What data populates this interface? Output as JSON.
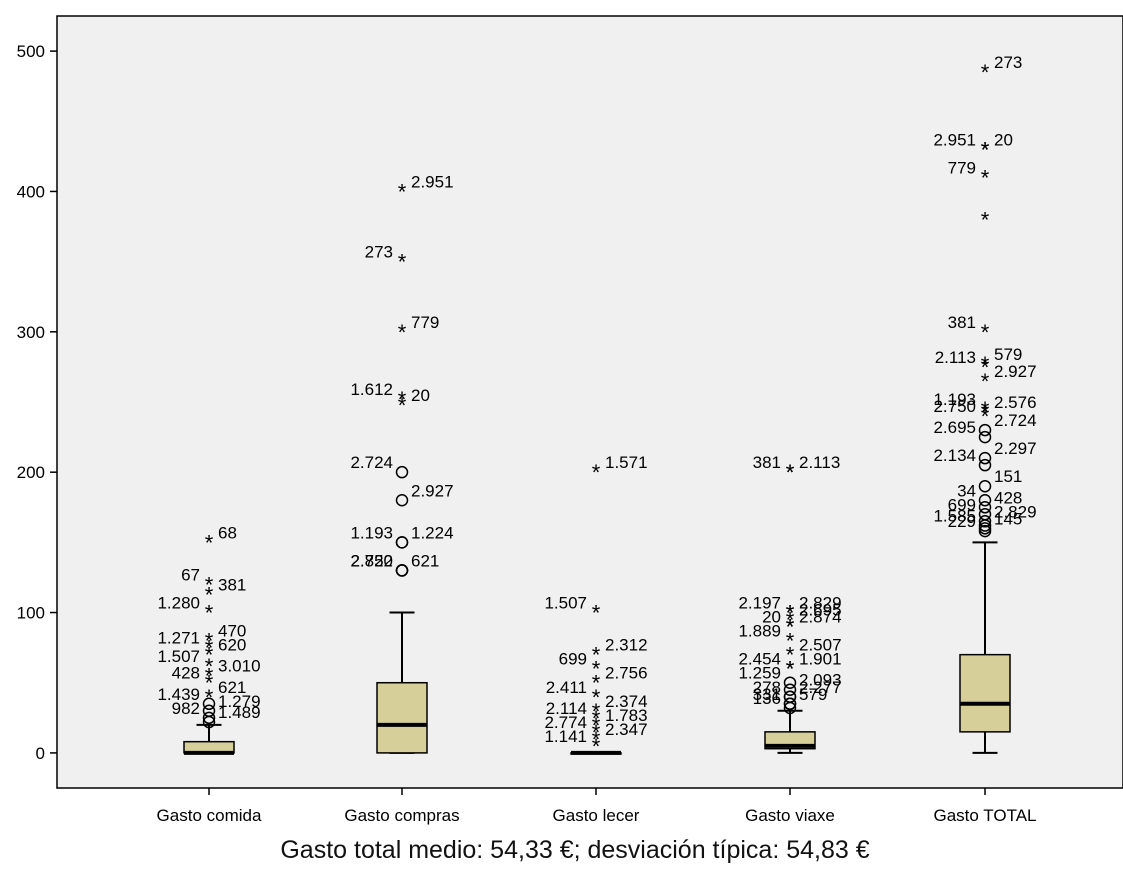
{
  "caption": "Gasto total medio: 54,33 €; desviación típica: 54,83 €",
  "colors": {
    "box_fill": "#d6cf9a",
    "plot_bg": "#f0f0f0",
    "ink": "#000000"
  },
  "chart_data": {
    "type": "boxplot",
    "title": "",
    "xlabel": "",
    "ylabel": "",
    "ylim": [
      -25,
      525
    ],
    "yticks": [
      0,
      100,
      200,
      300,
      400,
      500
    ],
    "grid": false,
    "legend": "none",
    "categories": [
      "Gasto comida",
      "Gasto compras",
      "Gasto lecer",
      "Gasto viaxe",
      "Gasto TOTAL"
    ],
    "series": [
      {
        "category": "Gasto comida",
        "box": {
          "whisker_low": 0,
          "q1": 0,
          "median": 0,
          "q3": 8,
          "whisker_high": 20
        },
        "outliers": [
          {
            "label": "68",
            "value": 150,
            "marker": "star"
          },
          {
            "label": "67",
            "value": 120,
            "marker": "star"
          },
          {
            "label": "381",
            "value": 113,
            "marker": "star"
          },
          {
            "label": "1.280",
            "value": 100,
            "marker": "star"
          },
          {
            "label": "470",
            "value": 80,
            "marker": "star"
          },
          {
            "label": "1.271",
            "value": 75,
            "marker": "star"
          },
          {
            "label": "620",
            "value": 70,
            "marker": "star"
          },
          {
            "label": "1.507",
            "value": 62,
            "marker": "star"
          },
          {
            "label": "3.010",
            "value": 55,
            "marker": "star"
          },
          {
            "label": "428",
            "value": 50,
            "marker": "star"
          },
          {
            "label": "621",
            "value": 40,
            "marker": "star"
          },
          {
            "label": "1.439",
            "value": 35,
            "marker": "circle"
          },
          {
            "label": "1.279",
            "value": 30,
            "marker": "circle"
          },
          {
            "label": "982",
            "value": 25,
            "marker": "circle"
          },
          {
            "label": "1.489",
            "value": 22,
            "marker": "circle"
          }
        ]
      },
      {
        "category": "Gasto compras",
        "box": {
          "whisker_low": 0,
          "q1": 0,
          "median": 20,
          "q3": 50,
          "whisker_high": 100
        },
        "outliers": [
          {
            "label": "2.951",
            "value": 400,
            "marker": "star"
          },
          {
            "label": "273",
            "value": 350,
            "marker": "star"
          },
          {
            "label": "779",
            "value": 300,
            "marker": "star"
          },
          {
            "label": "1.612",
            "value": 252,
            "marker": "star"
          },
          {
            "label": "20",
            "value": 248,
            "marker": "star"
          },
          {
            "label": "2.724",
            "value": 200,
            "marker": "circle"
          },
          {
            "label": "2.927",
            "value": 180,
            "marker": "circle"
          },
          {
            "label": "1.193",
            "value": 150,
            "marker": "circle"
          },
          {
            "label": "1.224",
            "value": 150,
            "marker": "circle"
          },
          {
            "label": "2.750",
            "value": 130,
            "marker": "circle"
          },
          {
            "label": "621",
            "value": 130,
            "marker": "circle"
          },
          {
            "label": "2.822",
            "value": 130,
            "marker": "circle"
          }
        ]
      },
      {
        "category": "Gasto lecer",
        "box": {
          "whisker_low": 0,
          "q1": 0,
          "median": 0,
          "q3": 0,
          "whisker_high": 0
        },
        "outliers": [
          {
            "label": "1.571",
            "value": 200,
            "marker": "star"
          },
          {
            "label": "1.507",
            "value": 100,
            "marker": "star"
          },
          {
            "label": "2.312",
            "value": 70,
            "marker": "star"
          },
          {
            "label": "699",
            "value": 60,
            "marker": "star"
          },
          {
            "label": "2.756",
            "value": 50,
            "marker": "star"
          },
          {
            "label": "2.411",
            "value": 40,
            "marker": "star"
          },
          {
            "label": "2.374",
            "value": 30,
            "marker": "star"
          },
          {
            "label": "2.114",
            "value": 25,
            "marker": "star"
          },
          {
            "label": "1.783",
            "value": 20,
            "marker": "star"
          },
          {
            "label": "2.774",
            "value": 15,
            "marker": "star"
          },
          {
            "label": "2.347",
            "value": 10,
            "marker": "star"
          },
          {
            "label": "1.141",
            "value": 5,
            "marker": "star"
          }
        ]
      },
      {
        "category": "Gasto viaxe",
        "box": {
          "whisker_low": 0,
          "q1": 3,
          "median": 5,
          "q3": 15,
          "whisker_high": 30
        },
        "outliers": [
          {
            "label": "2.113",
            "value": 200,
            "marker": "star"
          },
          {
            "label": "381",
            "value": 200,
            "marker": "star"
          },
          {
            "label": "2.829",
            "value": 100,
            "marker": "star"
          },
          {
            "label": "2.197",
            "value": 100,
            "marker": "star"
          },
          {
            "label": "2.695",
            "value": 95,
            "marker": "star"
          },
          {
            "label": "20",
            "value": 90,
            "marker": "star"
          },
          {
            "label": "2.874",
            "value": 90,
            "marker": "star"
          },
          {
            "label": "1.889",
            "value": 80,
            "marker": "star"
          },
          {
            "label": "2.507",
            "value": 70,
            "marker": "star"
          },
          {
            "label": "2.454",
            "value": 60,
            "marker": "star"
          },
          {
            "label": "1.901",
            "value": 60,
            "marker": "star"
          },
          {
            "label": "1.259",
            "value": 50,
            "marker": "circle"
          },
          {
            "label": "2.093",
            "value": 45,
            "marker": "circle"
          },
          {
            "label": "278",
            "value": 40,
            "marker": "circle"
          },
          {
            "label": "2.277",
            "value": 40,
            "marker": "circle"
          },
          {
            "label": "331",
            "value": 35,
            "marker": "circle"
          },
          {
            "label": "579",
            "value": 35,
            "marker": "circle"
          },
          {
            "label": "136",
            "value": 32,
            "marker": "circle"
          }
        ]
      },
      {
        "category": "Gasto TOTAL",
        "box": {
          "whisker_low": 0,
          "q1": 15,
          "median": 35,
          "q3": 70,
          "whisker_high": 150
        },
        "outliers": [
          {
            "label": "273",
            "value": 485,
            "marker": "star"
          },
          {
            "label": "2.951",
            "value": 430,
            "marker": "star"
          },
          {
            "label": "20",
            "value": 430,
            "marker": "star"
          },
          {
            "label": "779",
            "value": 410,
            "marker": "star"
          },
          {
            "label": "",
            "value": 380,
            "marker": "star"
          },
          {
            "label": "381",
            "value": 300,
            "marker": "star"
          },
          {
            "label": "579",
            "value": 277,
            "marker": "star"
          },
          {
            "label": "2.113",
            "value": 275,
            "marker": "star"
          },
          {
            "label": "2.927",
            "value": 265,
            "marker": "star"
          },
          {
            "label": "1.193",
            "value": 245,
            "marker": "star"
          },
          {
            "label": "2.576",
            "value": 243,
            "marker": "star"
          },
          {
            "label": "2.750",
            "value": 240,
            "marker": "star"
          },
          {
            "label": "2.724",
            "value": 230,
            "marker": "circle"
          },
          {
            "label": "2.695",
            "value": 225,
            "marker": "circle"
          },
          {
            "label": "2.297",
            "value": 210,
            "marker": "circle"
          },
          {
            "label": "2.134",
            "value": 205,
            "marker": "circle"
          },
          {
            "label": "151",
            "value": 190,
            "marker": "circle"
          },
          {
            "label": "34",
            "value": 180,
            "marker": "circle"
          },
          {
            "label": "428",
            "value": 175,
            "marker": "circle"
          },
          {
            "label": "699",
            "value": 170,
            "marker": "circle"
          },
          {
            "label": "2.829",
            "value": 165,
            "marker": "circle"
          },
          {
            "label": "1.585",
            "value": 162,
            "marker": "circle"
          },
          {
            "label": "145",
            "value": 160,
            "marker": "circle"
          },
          {
            "label": "229",
            "value": 158,
            "marker": "circle"
          }
        ]
      }
    ]
  }
}
